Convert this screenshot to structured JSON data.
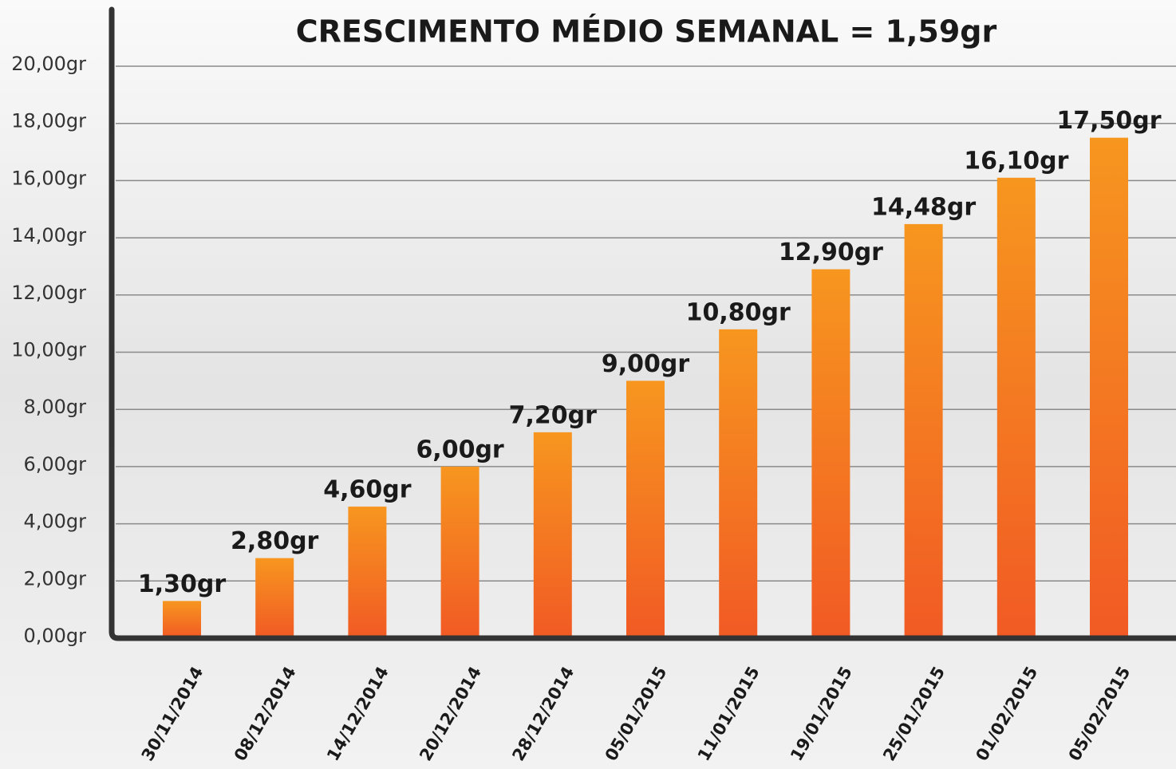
{
  "chart_data": {
    "type": "bar",
    "title": "CRESCIMENTO MÉDIO SEMANAL = 1,59gr",
    "categories": [
      "30/11/2014",
      "08/12/2014",
      "14/12/2014",
      "20/12/2014",
      "28/12/2014",
      "05/01/2015",
      "11/01/2015",
      "19/01/2015",
      "25/01/2015",
      "01/02/2015",
      "05/02/2015"
    ],
    "values": [
      1.3,
      2.8,
      4.6,
      6.0,
      7.2,
      9.0,
      10.8,
      12.9,
      14.48,
      16.1,
      17.5
    ],
    "value_labels": [
      "1,30gr",
      "2,80gr",
      "4,60gr",
      "6,00gr",
      "7,20gr",
      "9,00gr",
      "10,80gr",
      "12,90gr",
      "14,48gr",
      "16,10gr",
      "17,50gr"
    ],
    "color": "#f47a20",
    "ylim": [
      0,
      20
    ],
    "yticks": [
      {
        "value": 0,
        "label": "0,00gr"
      },
      {
        "value": 2,
        "label": "2,00gr"
      },
      {
        "value": 4,
        "label": "4,00gr"
      },
      {
        "value": 6,
        "label": "6,00gr"
      },
      {
        "value": 8,
        "label": "8,00gr"
      },
      {
        "value": 10,
        "label": "10,00gr"
      },
      {
        "value": 12,
        "label": "12,00gr"
      },
      {
        "value": 14,
        "label": "14,00gr"
      },
      {
        "value": 16,
        "label": "16,00gr"
      },
      {
        "value": 18,
        "label": "18,00gr"
      },
      {
        "value": 20,
        "label": "20,00gr"
      }
    ],
    "grid": true
  }
}
